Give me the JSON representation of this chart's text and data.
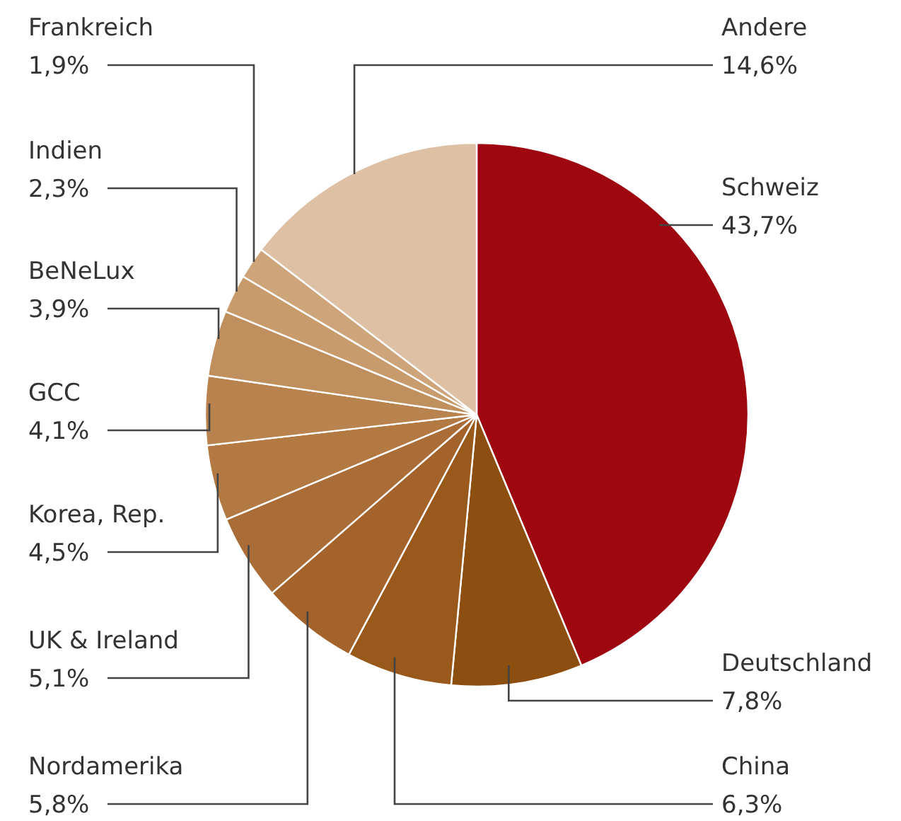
{
  "chart_data": {
    "type": "pie",
    "categories": [
      "Schweiz",
      "Deutschland",
      "China",
      "Nordamerika",
      "UK & Ireland",
      "Korea, Rep.",
      "GCC",
      "BeNeLux",
      "Indien",
      "Frankreich",
      "Andere"
    ],
    "values": [
      43.7,
      7.8,
      6.3,
      5.8,
      5.1,
      4.5,
      4.1,
      3.9,
      2.3,
      1.9,
      14.6
    ],
    "value_labels": [
      "43,7%",
      "7,8%",
      "6,3%",
      "5,8%",
      "5,1%",
      "4,5%",
      "4,1%",
      "3,9%",
      "2,3%",
      "1,9%",
      "14,6%"
    ],
    "colors": [
      "#9e0610",
      "#8c4f10",
      "#99591b",
      "#a3632b",
      "#ab6d37",
      "#b37943",
      "#b9834f",
      "#c08f5e",
      "#c79b6c",
      "#cea57b",
      "#dec0a5"
    ],
    "legend": false
  }
}
